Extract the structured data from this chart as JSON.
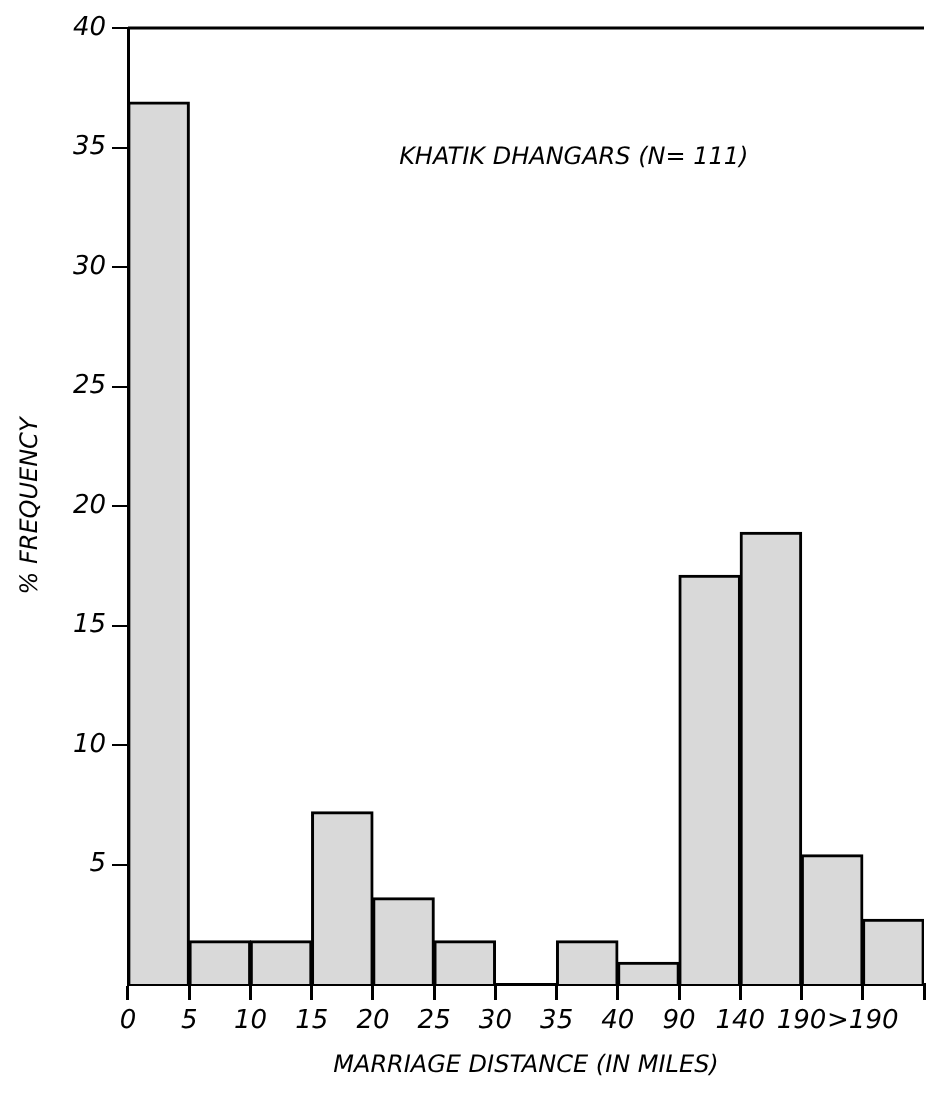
{
  "chart_data": {
    "type": "bar",
    "annotations": [
      "KHATIK DHANGARS (N= 111)"
    ],
    "xlabel": "MARRIAGE DISTANCE (IN MILES)",
    "ylabel": "% FREQUENCY",
    "categories": [
      "0",
      "5",
      "10",
      "15",
      "20",
      "25",
      "30",
      "35",
      "40",
      "90",
      "140",
      "190",
      ">190"
    ],
    "values": [
      36.9,
      1.8,
      1.8,
      7.2,
      3.6,
      1.8,
      0,
      1.8,
      0.9,
      17.1,
      18.9,
      5.4,
      2.7
    ],
    "color": "#d9d9d9",
    "ylim": [
      0,
      40
    ],
    "yticks": [
      5,
      10,
      15,
      20,
      25,
      30,
      35,
      40
    ],
    "grid": false,
    "legend": false
  }
}
